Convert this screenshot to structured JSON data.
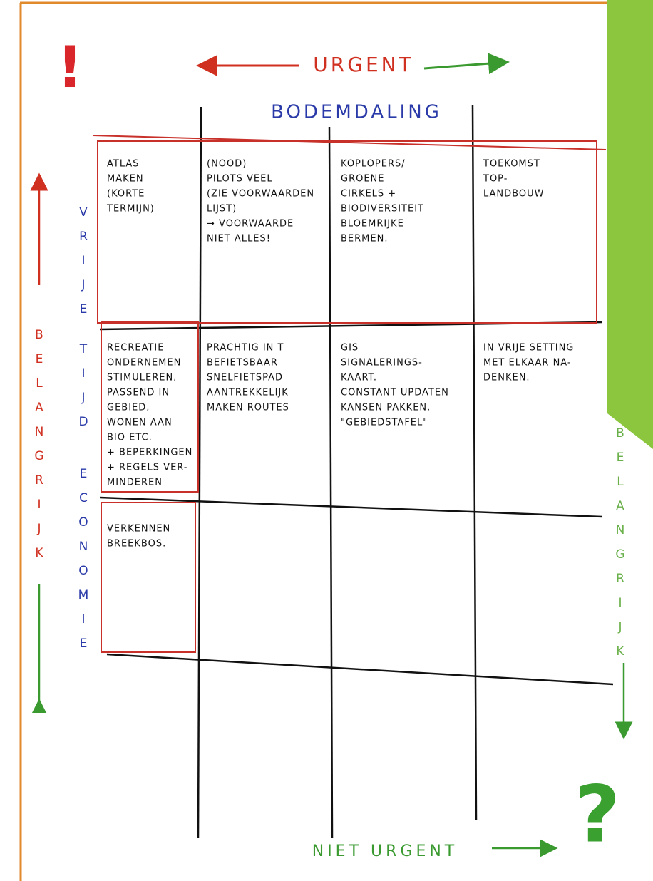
{
  "header": {
    "urgent": "URGENT",
    "title": "BODEMDALING",
    "not_urgent": "NIET URGENT",
    "exclamation": "!",
    "question": "?"
  },
  "side_labels": {
    "left": "BELANGRIJK",
    "right": "BELANGRIJK",
    "row_labels": [
      "VRIJE",
      "TIJD",
      "ECONOMIE"
    ]
  },
  "cells": [
    [
      [
        "ATLAS",
        "MAKEN",
        "(KORTE",
        "TERMIJN)"
      ],
      [
        "(NOOD)",
        "PILOTS  VEEL",
        "(ZIE VOORWAARDEN",
        "LIJST)",
        "→ VOORWAARDE",
        "NIET ALLES!"
      ],
      [
        "KOPLOPERS/",
        "GROENE",
        "CIRKELS +",
        "BIODIVERSITEIT",
        "BLOEMRIJKE",
        "BERMEN."
      ],
      [
        "TOEKOMST",
        "TOP-",
        "LANDBOUW"
      ]
    ],
    [
      [
        "RECREATIE",
        "ONDERNEMEN",
        "STIMULEREN,",
        "PASSEND IN",
        "GEBIED,",
        "WONEN AAN",
        "BIO ETC.",
        "+ BEPERKINGEN",
        "+ REGELS VER-",
        "MINDEREN"
      ],
      [
        "PRACHTIG IN T",
        "BEFIETSBAAR",
        "SNELFIETSPAD",
        "AANTREKKELIJK",
        "MAKEN ROUTES"
      ],
      [
        "GIS",
        "SIGNALERINGS-",
        "KAART.",
        "CONSTANT UPDATEN",
        "KANSEN PAKKEN.",
        "\"GEBIEDSTAFEL\""
      ],
      [
        "IN VRIJE SETTING",
        "MET ELKAAR NA-",
        "DENKEN."
      ]
    ],
    [
      [
        "VERKENNEN",
        "BREEKBOS."
      ]
    ]
  ]
}
